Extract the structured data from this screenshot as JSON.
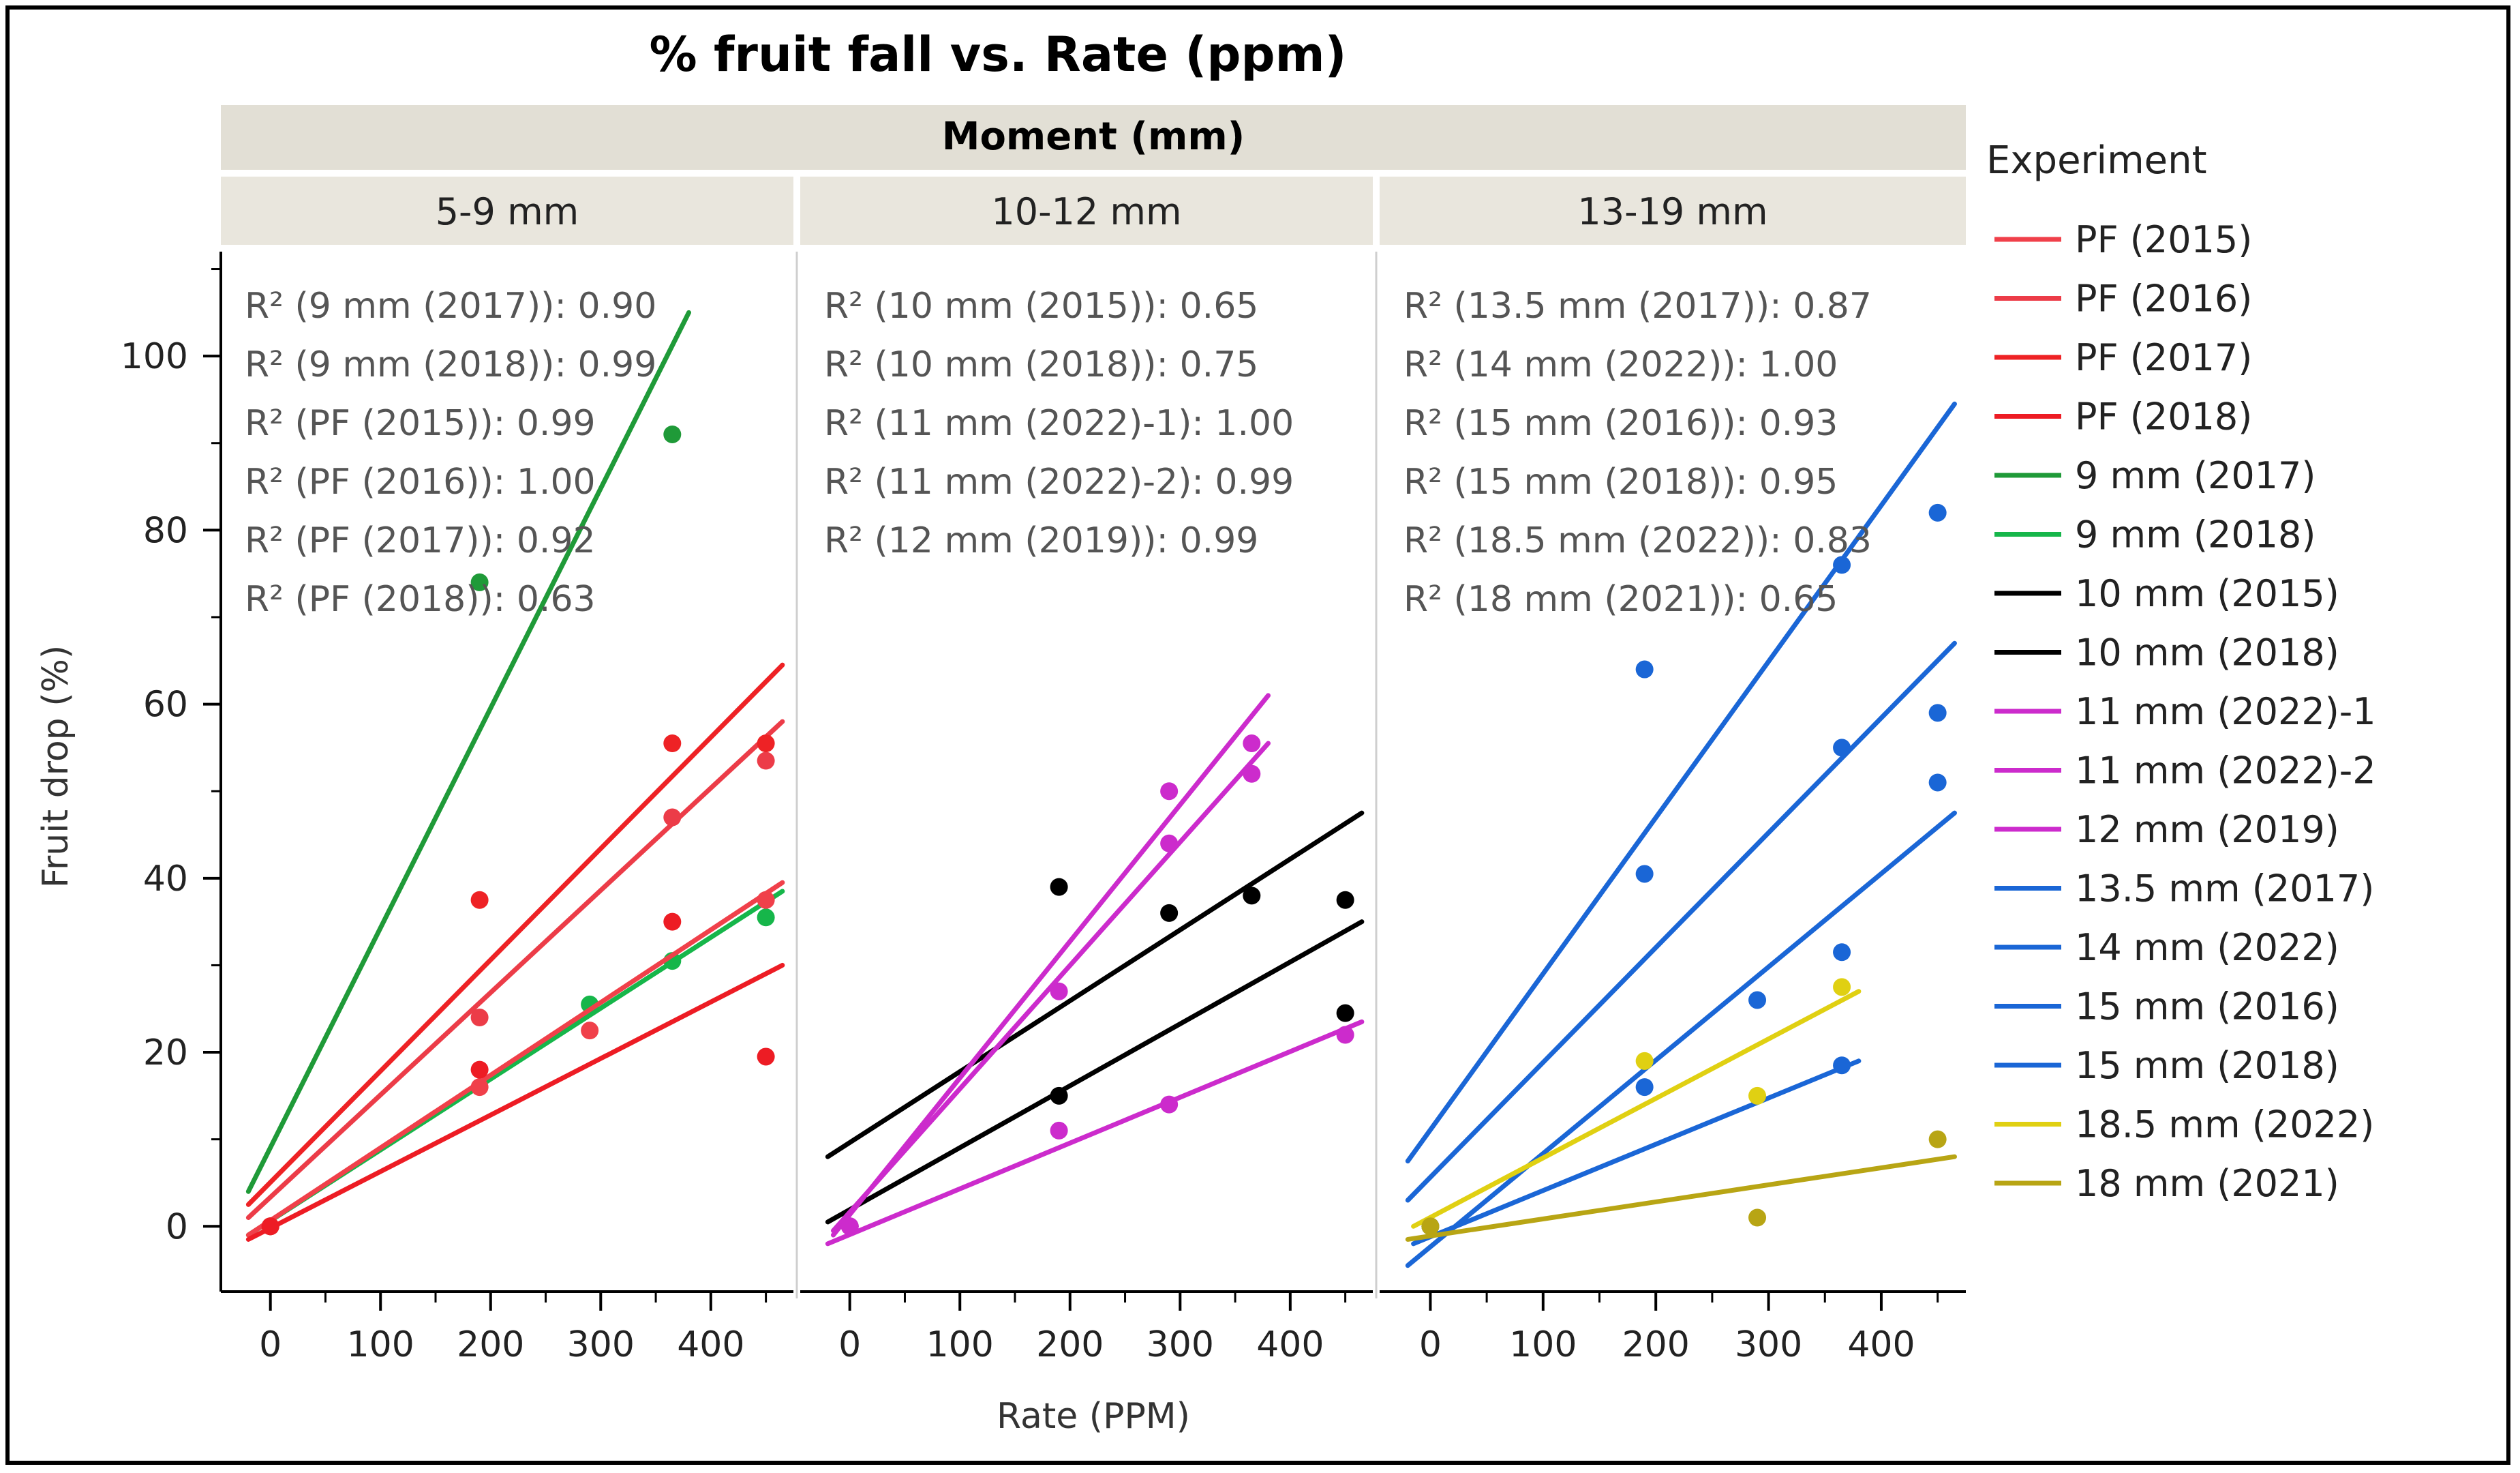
{
  "chart_data": {
    "type": "scatter",
    "title": "% fruit fall vs. Rate (ppm)",
    "group_label": "Moment (mm)",
    "xlabel": "Rate (PPM)",
    "ylabel": "Fruit drop (%)",
    "xlim": [
      -45,
      475
    ],
    "ylim": [
      -7.5,
      112
    ],
    "xticks": [
      0,
      100,
      200,
      300,
      400
    ],
    "yticks": [
      0,
      20,
      40,
      60,
      80,
      100
    ],
    "legend_title": "Experiment",
    "legend": [
      {
        "name": "PF (2015)",
        "color": "#f0404a"
      },
      {
        "name": "PF (2016)",
        "color": "#ec3c48"
      },
      {
        "name": "PF (2017)",
        "color": "#ee2225"
      },
      {
        "name": "PF (2018)",
        "color": "#ed1c24"
      },
      {
        "name": "9 mm (2017)",
        "color": "#1f9a38"
      },
      {
        "name": "9 mm (2018)",
        "color": "#16b64a"
      },
      {
        "name": "10 mm (2015)",
        "color": "#000000"
      },
      {
        "name": "10 mm (2018)",
        "color": "#000000"
      },
      {
        "name": "11 mm (2022)-1",
        "color": "#cc2bcc"
      },
      {
        "name": "11 mm (2022)-2",
        "color": "#cc2bcc"
      },
      {
        "name": "12 mm (2019)",
        "color": "#cc2bcc"
      },
      {
        "name": "13.5 mm (2017)",
        "color": "#1a66d6"
      },
      {
        "name": "14 mm (2022)",
        "color": "#1a66d6"
      },
      {
        "name": "15 mm (2016)",
        "color": "#1a66d6"
      },
      {
        "name": "15 mm (2018)",
        "color": "#1a66d6"
      },
      {
        "name": "18.5 mm (2022)",
        "color": "#e0d012"
      },
      {
        "name": "18 mm (2021)",
        "color": "#b8a514"
      }
    ],
    "panels": [
      {
        "label": "5-9 mm",
        "r2": [
          "R² (9 mm (2017)): 0.90",
          "R² (9 mm (2018)): 0.99",
          "R² (PF (2015)): 0.99",
          "R² (PF (2016)): 1.00",
          "R² (PF (2017)): 0.92",
          "R² (PF (2018)): 0.63"
        ],
        "series": [
          {
            "name": "9 mm (2017)",
            "color": "#1f9a38",
            "line": [
              [
                -20,
                4
              ],
              [
                380,
                105
              ]
            ],
            "points": [
              [
                0,
                0
              ],
              [
                190,
                74
              ],
              [
                365,
                91
              ]
            ]
          },
          {
            "name": "9 mm (2018)",
            "color": "#16b64a",
            "line": [
              [
                -20,
                -1
              ],
              [
                465,
                38.5
              ]
            ],
            "points": [
              [
                0,
                0
              ],
              [
                290,
                25.5
              ],
              [
                365,
                30.5
              ],
              [
                450,
                35.5
              ]
            ]
          },
          {
            "name": "PF (2015)",
            "color": "#f0404a",
            "line": [
              [
                -20,
                -1
              ],
              [
                465,
                39.5
              ]
            ],
            "points": [
              [
                0,
                0
              ],
              [
                190,
                16
              ],
              [
                290,
                22.5
              ],
              [
                450,
                37.5
              ]
            ]
          },
          {
            "name": "PF (2016)",
            "color": "#ec3c48",
            "line": [
              [
                -20,
                1
              ],
              [
                465,
                58
              ]
            ],
            "points": [
              [
                0,
                0
              ],
              [
                190,
                24
              ],
              [
                365,
                47
              ],
              [
                450,
                53.5
              ]
            ]
          },
          {
            "name": "PF (2017)",
            "color": "#ee2225",
            "line": [
              [
                -20,
                2.5
              ],
              [
                465,
                64.5
              ]
            ],
            "points": [
              [
                0,
                0
              ],
              [
                190,
                37.5
              ],
              [
                365,
                55.5
              ],
              [
                450,
                55.5
              ]
            ]
          },
          {
            "name": "PF (2018)",
            "color": "#ed1c24",
            "line": [
              [
                -20,
                -1.5
              ],
              [
                465,
                30
              ]
            ],
            "points": [
              [
                0,
                0
              ],
              [
                190,
                18
              ],
              [
                365,
                35
              ],
              [
                450,
                19.5
              ]
            ]
          }
        ]
      },
      {
        "label": "10-12 mm",
        "r2": [
          "R² (10 mm (2015)): 0.65",
          "R² (10 mm (2018)): 0.75",
          "R² (11 mm (2022)-1): 1.00",
          "R² (11 mm (2022)-2): 0.99",
          "R² (12 mm (2019)): 0.99"
        ],
        "series": [
          {
            "name": "10 mm (2015)",
            "color": "#000000",
            "line": [
              [
                -20,
                8
              ],
              [
                465,
                47.5
              ]
            ],
            "points": [
              [
                190,
                39
              ],
              [
                290,
                36
              ],
              [
                365,
                38
              ],
              [
                450,
                37.5
              ]
            ]
          },
          {
            "name": "10 mm (2018)",
            "color": "#000000",
            "line": [
              [
                -20,
                0.5
              ],
              [
                465,
                35
              ]
            ],
            "points": [
              [
                0,
                0
              ],
              [
                190,
                15
              ],
              [
                450,
                24.5
              ]
            ]
          },
          {
            "name": "11 mm (2022)-1",
            "color": "#cc2bcc",
            "line": [
              [
                -15,
                -1
              ],
              [
                380,
                61
              ]
            ],
            "points": [
              [
                0,
                0
              ],
              [
                190,
                27
              ],
              [
                290,
                50
              ],
              [
                365,
                55.5
              ]
            ]
          },
          {
            "name": "11 mm (2022)-2",
            "color": "#cc2bcc",
            "line": [
              [
                -15,
                -0.5
              ],
              [
                380,
                55.5
              ]
            ],
            "points": [
              [
                0,
                0
              ],
              [
                290,
                44
              ],
              [
                365,
                52
              ]
            ]
          },
          {
            "name": "12 mm (2019)",
            "color": "#cc2bcc",
            "line": [
              [
                -20,
                -2
              ],
              [
                465,
                23.5
              ]
            ],
            "points": [
              [
                0,
                0
              ],
              [
                190,
                11
              ],
              [
                290,
                14
              ],
              [
                450,
                22
              ]
            ]
          }
        ]
      },
      {
        "label": "13-19 mm",
        "r2": [
          "R² (13.5 mm (2017)): 0.87",
          "R² (14 mm (2022)): 1.00",
          "R² (15 mm (2016)): 0.93",
          "R² (15 mm (2018)): 0.95",
          "R² (18.5 mm (2022)): 0.83",
          "R² (18 mm (2021)): 0.65"
        ],
        "series": [
          {
            "name": "13.5 mm (2017)",
            "color": "#1a66d6",
            "line": [
              [
                -20,
                7.5
              ],
              [
                465,
                94.5
              ]
            ],
            "points": [
              [
                190,
                64
              ],
              [
                365,
                76
              ],
              [
                450,
                82
              ]
            ]
          },
          {
            "name": "14 mm (2022)",
            "color": "#1a66d6",
            "line": [
              [
                -20,
                3
              ],
              [
                465,
                67
              ]
            ],
            "points": [
              [
                0,
                0
              ],
              [
                190,
                40.5
              ],
              [
                365,
                55
              ],
              [
                450,
                59
              ]
            ]
          },
          {
            "name": "15 mm (2016)",
            "color": "#1a66d6",
            "line": [
              [
                -20,
                -4.5
              ],
              [
                465,
                47.5
              ]
            ],
            "points": [
              [
                0,
                0
              ],
              [
                190,
                16
              ],
              [
                290,
                26
              ],
              [
                365,
                31.5
              ],
              [
                450,
                51
              ]
            ]
          },
          {
            "name": "15 mm (2018)",
            "color": "#1a66d6",
            "line": [
              [
                -15,
                -2
              ],
              [
                380,
                19
              ]
            ],
            "points": [
              [
                0,
                0
              ],
              [
                365,
                18.5
              ]
            ]
          },
          {
            "name": "18.5 mm (2022)",
            "color": "#e0d012",
            "line": [
              [
                -15,
                0
              ],
              [
                380,
                27
              ]
            ],
            "points": [
              [
                0,
                0
              ],
              [
                190,
                19
              ],
              [
                290,
                15
              ],
              [
                365,
                27.5
              ]
            ]
          },
          {
            "name": "18 mm (2021)",
            "color": "#b8a514",
            "line": [
              [
                -20,
                -1.5
              ],
              [
                465,
                8
              ]
            ],
            "points": [
              [
                0,
                0
              ],
              [
                290,
                1
              ],
              [
                450,
                10
              ]
            ]
          }
        ]
      }
    ]
  }
}
